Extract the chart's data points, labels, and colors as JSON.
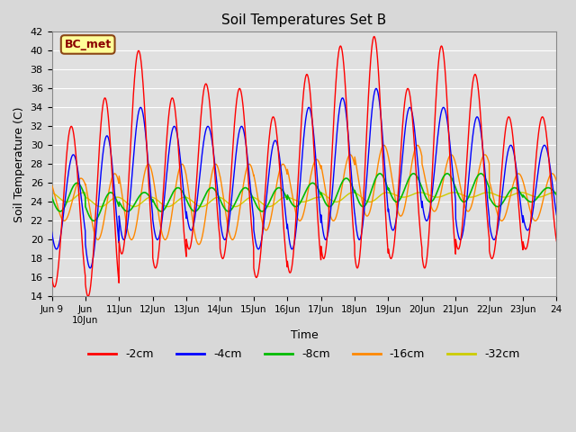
{
  "title": "Soil Temperatures Set B",
  "xlabel": "Time",
  "ylabel": "Soil Temperature (C)",
  "annotation": "BC_met",
  "ylim": [
    14,
    42
  ],
  "yticks": [
    14,
    16,
    18,
    20,
    22,
    24,
    26,
    28,
    30,
    32,
    34,
    36,
    38,
    40,
    42
  ],
  "series_colors": {
    "-2cm": "#ff0000",
    "-4cm": "#0000ff",
    "-8cm": "#00bb00",
    "-16cm": "#ff8800",
    "-32cm": "#cccc00"
  },
  "bg_color": "#e0e0e0",
  "grid_color": "#ffffff",
  "fig_bg": "#d8d8d8"
}
